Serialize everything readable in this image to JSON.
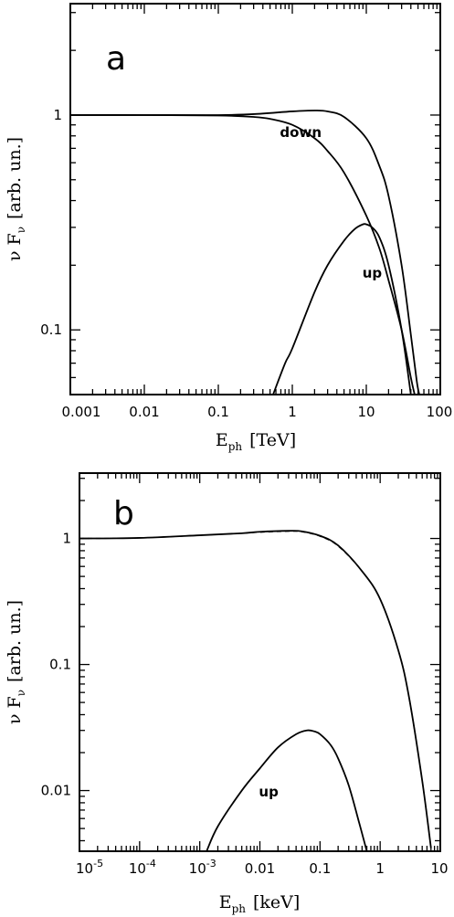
{
  "chart_data": [
    {
      "type": "line",
      "panel_label": "a",
      "xlabel": "E_ph [TeV]",
      "xlabel_main": "E",
      "xlabel_sub": "ph",
      "xlabel_rest": "[TeV]",
      "ylabel": "ν F_ν [arb. un.]",
      "ylabel_main": "ν F",
      "ylabel_sub": "ν",
      "ylabel_rest": "[arb. un.]",
      "xscale": "log",
      "yscale": "log",
      "xlim": [
        0.001,
        100
      ],
      "ylim": [
        0.05,
        3.3
      ],
      "x_ticks": [
        {
          "value": 0.001,
          "label": "0.001"
        },
        {
          "value": 0.01,
          "label": "0.01"
        },
        {
          "value": 0.1,
          "label": "0.1"
        },
        {
          "value": 1,
          "label": "1"
        },
        {
          "value": 10,
          "label": "10"
        },
        {
          "value": 100,
          "label": "100"
        }
      ],
      "y_ticks": [
        {
          "value": 0.1,
          "label": "0.1"
        },
        {
          "value": 1,
          "label": "1"
        }
      ],
      "series": [
        {
          "name": "",
          "style": "solid",
          "x": [
            0.001,
            0.01,
            0.1,
            0.3,
            1,
            2,
            3,
            5,
            10,
            15,
            20,
            30,
            40,
            48,
            52
          ],
          "y": [
            1.0,
            1.0,
            1.0,
            1.01,
            1.04,
            1.05,
            1.04,
            0.98,
            0.78,
            0.58,
            0.42,
            0.2,
            0.095,
            0.058,
            0.05
          ]
        },
        {
          "name": "",
          "style": "solid",
          "x": [
            0.001,
            0.01,
            0.1,
            0.3,
            0.5,
            1,
            2,
            3,
            5,
            10,
            15,
            20,
            30,
            40,
            45
          ],
          "y": [
            1.0,
            1.0,
            0.995,
            0.98,
            0.96,
            0.9,
            0.78,
            0.68,
            0.54,
            0.34,
            0.24,
            0.17,
            0.1,
            0.06,
            0.05
          ]
        },
        {
          "name": "up",
          "style": "solid",
          "x": [
            0.55,
            0.8,
            1,
            2,
            3,
            5,
            7,
            9,
            10,
            12,
            15,
            20,
            30,
            40
          ],
          "y": [
            0.05,
            0.07,
            0.082,
            0.15,
            0.2,
            0.26,
            0.295,
            0.31,
            0.31,
            0.3,
            0.27,
            0.2,
            0.1,
            0.05
          ]
        }
      ],
      "annotations": [
        {
          "text": "down",
          "x": 1.3,
          "y": 0.79
        },
        {
          "text": "up",
          "x": 12,
          "y": 0.175
        }
      ]
    },
    {
      "type": "line",
      "panel_label": "b",
      "xlabel": "E_ph [keV]",
      "xlabel_main": "E",
      "xlabel_sub": "ph",
      "xlabel_rest": "[keV]",
      "ylabel": "ν F_ν [arb. un.]",
      "ylabel_main": "ν F",
      "ylabel_sub": "ν",
      "ylabel_rest": "[arb. un.]",
      "xscale": "log",
      "yscale": "log",
      "xlim": [
        1e-05,
        10
      ],
      "ylim": [
        0.0033,
        3.3
      ],
      "x_ticks": [
        {
          "value": 1e-05,
          "label": "10",
          "exp": "-5"
        },
        {
          "value": 0.0001,
          "label": "10",
          "exp": "-4"
        },
        {
          "value": 0.001,
          "label": "10",
          "exp": "-3"
        },
        {
          "value": 0.01,
          "label": "0.01"
        },
        {
          "value": 0.1,
          "label": "0.1"
        },
        {
          "value": 1,
          "label": "1"
        },
        {
          "value": 10,
          "label": "10"
        }
      ],
      "y_ticks": [
        {
          "value": 0.01,
          "label": "0.01"
        },
        {
          "value": 0.1,
          "label": "0.1"
        },
        {
          "value": 1,
          "label": "1"
        }
      ],
      "series": [
        {
          "name": "",
          "style": "solid",
          "x": [
            1e-05,
            0.0001,
            0.001,
            0.005,
            0.01,
            0.03,
            0.05,
            0.1,
            0.2,
            0.5,
            1,
            2,
            3,
            5,
            7
          ],
          "y": [
            1.0,
            1.01,
            1.06,
            1.1,
            1.13,
            1.15,
            1.14,
            1.05,
            0.88,
            0.55,
            0.33,
            0.13,
            0.056,
            0.012,
            0.0035
          ]
        },
        {
          "name": "",
          "style": "dashed",
          "x": [
            1e-05,
            0.0001,
            0.001,
            0.005,
            0.01,
            0.03,
            0.05,
            0.1,
            0.2,
            0.5,
            1,
            2,
            3,
            5,
            7
          ],
          "y": [
            1.0,
            1.01,
            1.06,
            1.1,
            1.12,
            1.14,
            1.13,
            1.04,
            0.87,
            0.55,
            0.33,
            0.13,
            0.056,
            0.012,
            0.0035
          ]
        },
        {
          "name": "up",
          "style": "solid",
          "x": [
            0.0013,
            0.002,
            0.005,
            0.01,
            0.02,
            0.04,
            0.06,
            0.08,
            0.1,
            0.15,
            0.2,
            0.3,
            0.45,
            0.6
          ],
          "y": [
            0.0033,
            0.0052,
            0.01,
            0.015,
            0.022,
            0.028,
            0.03,
            0.0295,
            0.028,
            0.023,
            0.018,
            0.011,
            0.0055,
            0.0033
          ]
        }
      ],
      "annotations": [
        {
          "text": "up",
          "x": 0.014,
          "y": 0.009
        }
      ]
    }
  ]
}
